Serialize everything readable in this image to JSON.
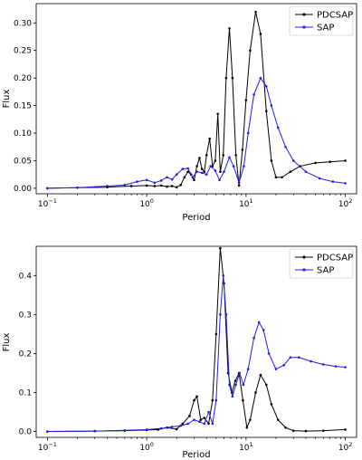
{
  "chart_data": [
    {
      "type": "line",
      "xlabel": "Period",
      "ylabel": "Flux",
      "xscale": "log",
      "xlim": [
        0.1,
        100
      ],
      "ylim": [
        -0.01,
        0.335
      ],
      "xticks": [
        {
          "value": 0.1,
          "base": "10",
          "exp": "−1"
        },
        {
          "value": 1,
          "base": "10",
          "exp": "0"
        },
        {
          "value": 10,
          "base": "10",
          "exp": "1"
        },
        {
          "value": 100,
          "base": "10",
          "exp": "2"
        }
      ],
      "yticks": [
        {
          "value": 0.0,
          "label": "0.00"
        },
        {
          "value": 0.05,
          "label": "0.05"
        },
        {
          "value": 0.1,
          "label": "0.10"
        },
        {
          "value": 0.15,
          "label": "0.15"
        },
        {
          "value": 0.2,
          "label": "0.20"
        },
        {
          "value": 0.25,
          "label": "0.25"
        },
        {
          "value": 0.3,
          "label": "0.30"
        }
      ],
      "legend_position": "top-right",
      "series": [
        {
          "name": "PDCSAP",
          "color": "#000000",
          "points": [
            [
              0.1,
              0.0
            ],
            [
              0.2,
              0.001
            ],
            [
              0.4,
              0.002
            ],
            [
              0.7,
              0.004
            ],
            [
              1.0,
              0.005
            ],
            [
              1.2,
              0.004
            ],
            [
              1.4,
              0.005
            ],
            [
              1.6,
              0.003
            ],
            [
              1.8,
              0.004
            ],
            [
              2.0,
              0.002
            ],
            [
              2.2,
              0.006
            ],
            [
              2.4,
              0.02
            ],
            [
              2.6,
              0.03
            ],
            [
              2.8,
              0.025
            ],
            [
              3.0,
              0.015
            ],
            [
              3.2,
              0.04
            ],
            [
              3.4,
              0.055
            ],
            [
              3.6,
              0.035
            ],
            [
              3.8,
              0.03
            ],
            [
              4.0,
              0.06
            ],
            [
              4.3,
              0.09
            ],
            [
              4.6,
              0.04
            ],
            [
              4.9,
              0.05
            ],
            [
              5.2,
              0.135
            ],
            [
              5.5,
              0.03
            ],
            [
              5.9,
              0.06
            ],
            [
              6.3,
              0.2
            ],
            [
              6.8,
              0.29
            ],
            [
              7.3,
              0.2
            ],
            [
              7.9,
              0.06
            ],
            [
              8.5,
              0.005
            ],
            [
              9.2,
              0.07
            ],
            [
              10.0,
              0.16
            ],
            [
              11.0,
              0.25
            ],
            [
              12.5,
              0.32
            ],
            [
              14.0,
              0.28
            ],
            [
              16.0,
              0.14
            ],
            [
              18.0,
              0.05
            ],
            [
              20.0,
              0.02
            ],
            [
              23.0,
              0.02
            ],
            [
              28.0,
              0.03
            ],
            [
              35.0,
              0.04
            ],
            [
              50.0,
              0.046
            ],
            [
              70.0,
              0.048
            ],
            [
              100.0,
              0.05
            ]
          ]
        },
        {
          "name": "SAP",
          "color": "#1f1fe8",
          "points": [
            [
              0.1,
              0.0
            ],
            [
              0.2,
              0.001
            ],
            [
              0.4,
              0.004
            ],
            [
              0.6,
              0.006
            ],
            [
              0.8,
              0.012
            ],
            [
              1.0,
              0.015
            ],
            [
              1.2,
              0.01
            ],
            [
              1.4,
              0.014
            ],
            [
              1.6,
              0.02
            ],
            [
              1.8,
              0.016
            ],
            [
              2.0,
              0.025
            ],
            [
              2.3,
              0.035
            ],
            [
              2.6,
              0.036
            ],
            [
              2.9,
              0.02
            ],
            [
              3.2,
              0.03
            ],
            [
              3.6,
              0.028
            ],
            [
              4.0,
              0.025
            ],
            [
              4.4,
              0.04
            ],
            [
              4.9,
              0.032
            ],
            [
              5.4,
              0.015
            ],
            [
              6.0,
              0.03
            ],
            [
              6.8,
              0.056
            ],
            [
              7.5,
              0.04
            ],
            [
              8.5,
              0.01
            ],
            [
              9.5,
              0.04
            ],
            [
              10.5,
              0.1
            ],
            [
              12.0,
              0.17
            ],
            [
              14.0,
              0.2
            ],
            [
              16.0,
              0.185
            ],
            [
              18.0,
              0.15
            ],
            [
              21.0,
              0.11
            ],
            [
              25.0,
              0.075
            ],
            [
              30.0,
              0.05
            ],
            [
              40.0,
              0.03
            ],
            [
              55.0,
              0.018
            ],
            [
              75.0,
              0.012
            ],
            [
              100.0,
              0.009
            ]
          ]
        }
      ]
    },
    {
      "type": "line",
      "xlabel": "Period",
      "ylabel": "Flux",
      "xscale": "log",
      "xlim": [
        0.1,
        100
      ],
      "ylim": [
        -0.015,
        0.475
      ],
      "xticks": [
        {
          "value": 0.1,
          "base": "10",
          "exp": "−1"
        },
        {
          "value": 1,
          "base": "10",
          "exp": "0"
        },
        {
          "value": 10,
          "base": "10",
          "exp": "1"
        },
        {
          "value": 100,
          "base": "10",
          "exp": "2"
        }
      ],
      "yticks": [
        {
          "value": 0.0,
          "label": "0.0"
        },
        {
          "value": 0.1,
          "label": "0.1"
        },
        {
          "value": 0.2,
          "label": "0.2"
        },
        {
          "value": 0.3,
          "label": "0.3"
        },
        {
          "value": 0.4,
          "label": "0.4"
        }
      ],
      "legend_position": "top-right",
      "series": [
        {
          "name": "PDCSAP",
          "color": "#000000",
          "points": [
            [
              0.1,
              0.0
            ],
            [
              0.3,
              0.001
            ],
            [
              0.6,
              0.002
            ],
            [
              1.0,
              0.004
            ],
            [
              1.3,
              0.005
            ],
            [
              1.6,
              0.01
            ],
            [
              2.0,
              0.006
            ],
            [
              2.3,
              0.02
            ],
            [
              2.7,
              0.04
            ],
            [
              3.0,
              0.08
            ],
            [
              3.2,
              0.09
            ],
            [
              3.5,
              0.03
            ],
            [
              3.8,
              0.035
            ],
            [
              4.2,
              0.02
            ],
            [
              4.6,
              0.08
            ],
            [
              5.0,
              0.25
            ],
            [
              5.5,
              0.47
            ],
            [
              6.0,
              0.38
            ],
            [
              6.6,
              0.15
            ],
            [
              7.2,
              0.1
            ],
            [
              7.8,
              0.13
            ],
            [
              8.5,
              0.15
            ],
            [
              9.3,
              0.08
            ],
            [
              10.2,
              0.01
            ],
            [
              11.0,
              0.03
            ],
            [
              12.5,
              0.1
            ],
            [
              14.0,
              0.145
            ],
            [
              16.0,
              0.12
            ],
            [
              18.0,
              0.07
            ],
            [
              21.0,
              0.03
            ],
            [
              25.0,
              0.01
            ],
            [
              30.0,
              0.002
            ],
            [
              40.0,
              0.001
            ],
            [
              60.0,
              0.002
            ],
            [
              100.0,
              0.005
            ]
          ]
        },
        {
          "name": "SAP",
          "color": "#1f1fe8",
          "points": [
            [
              0.1,
              0.0
            ],
            [
              0.3,
              0.001
            ],
            [
              0.6,
              0.003
            ],
            [
              1.0,
              0.005
            ],
            [
              1.4,
              0.008
            ],
            [
              1.8,
              0.012
            ],
            [
              2.2,
              0.015
            ],
            [
              2.6,
              0.02
            ],
            [
              3.0,
              0.03
            ],
            [
              3.4,
              0.025
            ],
            [
              3.8,
              0.02
            ],
            [
              4.2,
              0.05
            ],
            [
              4.6,
              0.02
            ],
            [
              5.0,
              0.08
            ],
            [
              5.5,
              0.3
            ],
            [
              5.9,
              0.4
            ],
            [
              6.3,
              0.3
            ],
            [
              6.8,
              0.12
            ],
            [
              7.3,
              0.09
            ],
            [
              7.9,
              0.12
            ],
            [
              8.6,
              0.15
            ],
            [
              9.4,
              0.12
            ],
            [
              10.5,
              0.16
            ],
            [
              12.0,
              0.24
            ],
            [
              13.5,
              0.28
            ],
            [
              15.0,
              0.26
            ],
            [
              17.0,
              0.2
            ],
            [
              20.0,
              0.16
            ],
            [
              24.0,
              0.17
            ],
            [
              28.0,
              0.19
            ],
            [
              34.0,
              0.19
            ],
            [
              45.0,
              0.18
            ],
            [
              60.0,
              0.172
            ],
            [
              80.0,
              0.167
            ],
            [
              100.0,
              0.165
            ]
          ]
        }
      ]
    }
  ]
}
